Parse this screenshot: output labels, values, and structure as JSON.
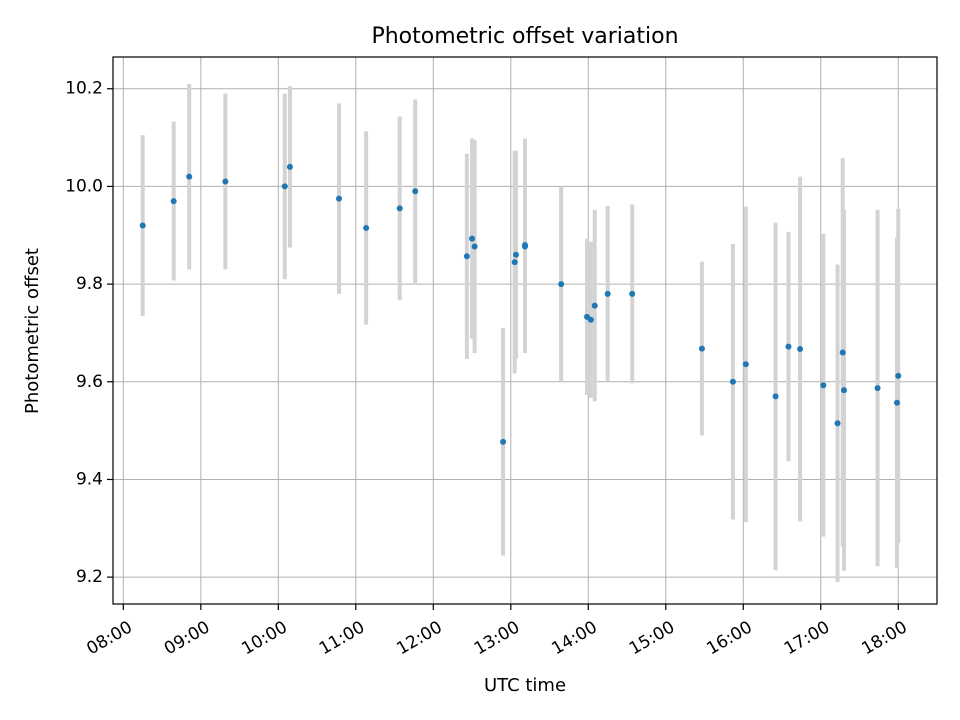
{
  "chart_data": {
    "type": "scatter",
    "title": "Photometric offset variation",
    "xlabel": "UTC time",
    "ylabel": "Photometric offset",
    "x_unit": "UTC hour",
    "xlim": [
      "07:52",
      "18:30"
    ],
    "ylim": [
      9.145,
      10.265
    ],
    "x_ticks": [
      "08:00",
      "09:00",
      "10:00",
      "11:00",
      "12:00",
      "13:00",
      "14:00",
      "15:00",
      "16:00",
      "17:00",
      "18:00"
    ],
    "y_ticks": [
      "9.2",
      "9.4",
      "9.6",
      "9.8",
      "10.0",
      "10.2"
    ],
    "grid": true,
    "colors": {
      "marker": "#1f77b4",
      "errorbar": "#d3d3d3",
      "grid": "#b0b0b0"
    },
    "points": [
      {
        "x": "08:15",
        "y": 9.92,
        "err": 0.185
      },
      {
        "x": "08:39",
        "y": 9.97,
        "err": 0.163
      },
      {
        "x": "08:51",
        "y": 10.02,
        "err": 0.19
      },
      {
        "x": "09:19",
        "y": 10.01,
        "err": 0.18
      },
      {
        "x": "10:05",
        "y": 10.0,
        "err": 0.19
      },
      {
        "x": "10:09",
        "y": 10.04,
        "err": 0.165
      },
      {
        "x": "10:47",
        "y": 9.975,
        "err": 0.195
      },
      {
        "x": "11:08",
        "y": 9.915,
        "err": 0.198
      },
      {
        "x": "11:34",
        "y": 9.955,
        "err": 0.188
      },
      {
        "x": "11:46",
        "y": 9.99,
        "err": 0.188
      },
      {
        "x": "12:26",
        "y": 9.857,
        "err": 0.21
      },
      {
        "x": "12:30",
        "y": 9.893,
        "err": 0.205
      },
      {
        "x": "12:32",
        "y": 9.877,
        "err": 0.218
      },
      {
        "x": "12:54",
        "y": 9.477,
        "err": 0.233
      },
      {
        "x": "13:03",
        "y": 9.845,
        "err": 0.228
      },
      {
        "x": "13:04",
        "y": 9.86,
        "err": 0.213
      },
      {
        "x": "13:11",
        "y": 9.88,
        "err": 0.218
      },
      {
        "x": "13:11",
        "y": 9.877,
        "err": 0.218
      },
      {
        "x": "13:39",
        "y": 9.8,
        "err": 0.2
      },
      {
        "x": "13:59",
        "y": 9.733,
        "err": 0.16
      },
      {
        "x": "14:02",
        "y": 9.727,
        "err": 0.16
      },
      {
        "x": "14:05",
        "y": 9.756,
        "err": 0.196
      },
      {
        "x": "14:15",
        "y": 9.78,
        "err": 0.18
      },
      {
        "x": "14:34",
        "y": 9.78,
        "err": 0.183
      },
      {
        "x": "15:28",
        "y": 9.668,
        "err": 0.178
      },
      {
        "x": "15:52",
        "y": 9.6,
        "err": 0.282
      },
      {
        "x": "16:02",
        "y": 9.636,
        "err": 0.323
      },
      {
        "x": "16:25",
        "y": 9.57,
        "err": 0.356
      },
      {
        "x": "16:35",
        "y": 9.672,
        "err": 0.235
      },
      {
        "x": "16:44",
        "y": 9.667,
        "err": 0.353
      },
      {
        "x": "17:02",
        "y": 9.593,
        "err": 0.31
      },
      {
        "x": "17:13",
        "y": 9.515,
        "err": 0.325
      },
      {
        "x": "17:17",
        "y": 9.66,
        "err": 0.398
      },
      {
        "x": "17:18",
        "y": 9.583,
        "err": 0.37
      },
      {
        "x": "17:44",
        "y": 9.587,
        "err": 0.365
      },
      {
        "x": "17:59",
        "y": 9.557,
        "err": 0.338
      },
      {
        "x": "18:00",
        "y": 9.612,
        "err": 0.342
      }
    ]
  }
}
